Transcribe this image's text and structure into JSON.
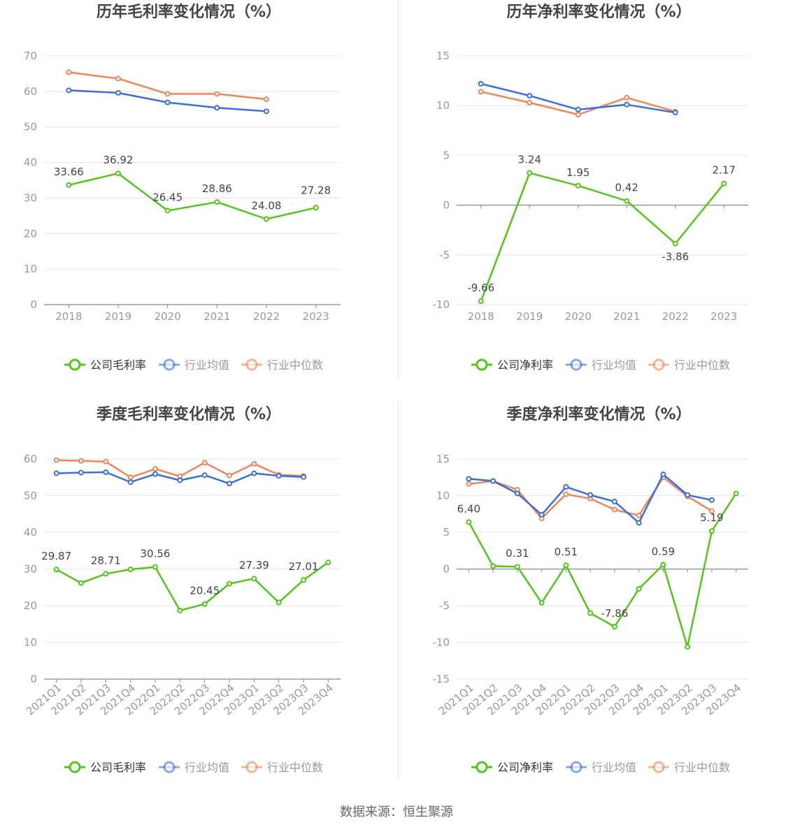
{
  "source_text": "数据来源：恒生聚源",
  "chart_data": [
    {
      "type": "line",
      "title": "历年毛利率变化情况（%）",
      "categories": [
        "2018",
        "2019",
        "2020",
        "2021",
        "2022",
        "2023"
      ],
      "ylim": [
        0,
        70
      ],
      "yticks": [
        0,
        10,
        20,
        30,
        40,
        50,
        60,
        70
      ],
      "series": [
        {
          "name": "公司毛利率",
          "color": "#52c41a",
          "values": [
            33.66,
            36.92,
            26.45,
            28.86,
            24.08,
            27.28
          ],
          "labels": [
            "33.66",
            "36.92",
            "26.45",
            "28.86",
            "24.08",
            "27.28"
          ]
        },
        {
          "name": "行业均值",
          "color": "#3a6fd8",
          "values": [
            60.3,
            59.6,
            56.9,
            55.4,
            54.4,
            null
          ],
          "labels": []
        },
        {
          "name": "行业中位数",
          "color": "#f0855a",
          "values": [
            65.4,
            63.6,
            59.3,
            59.3,
            57.8,
            null
          ],
          "labels": []
        }
      ]
    },
    {
      "type": "line",
      "title": "历年净利率变化情况（%）",
      "categories": [
        "2018",
        "2019",
        "2020",
        "2021",
        "2022",
        "2023"
      ],
      "ylim": [
        -10,
        15
      ],
      "yticks": [
        -10,
        -5,
        0,
        5,
        10,
        15
      ],
      "series": [
        {
          "name": "公司净利率",
          "color": "#52c41a",
          "values": [
            -9.66,
            3.24,
            1.95,
            0.42,
            -3.86,
            2.17
          ],
          "labels": [
            "-9.66",
            "3.24",
            "1.95",
            "0.42",
            "-3.86",
            "2.17"
          ]
        },
        {
          "name": "行业均值",
          "color": "#3a6fd8",
          "values": [
            12.2,
            11.0,
            9.6,
            10.1,
            9.3,
            null
          ],
          "labels": []
        },
        {
          "name": "行业中位数",
          "color": "#f0855a",
          "values": [
            11.4,
            10.3,
            9.1,
            10.8,
            9.4,
            null
          ],
          "labels": []
        }
      ]
    },
    {
      "type": "line",
      "title": "季度毛利率变化情况（%）",
      "categories": [
        "2021Q1",
        "2021Q2",
        "2021Q3",
        "2021Q4",
        "2022Q1",
        "2022Q2",
        "2022Q3",
        "2022Q4",
        "2023Q1",
        "2023Q2",
        "2023Q3",
        "2023Q4"
      ],
      "ylim": [
        0,
        60
      ],
      "yticks": [
        0,
        10,
        20,
        30,
        40,
        50,
        60
      ],
      "series": [
        {
          "name": "公司毛利率",
          "color": "#52c41a",
          "values": [
            29.87,
            26.2,
            28.71,
            29.9,
            30.56,
            18.7,
            20.45,
            26.0,
            27.39,
            20.9,
            27.01,
            31.8
          ],
          "labels": [
            "29.87",
            "",
            "28.71",
            "",
            "30.56",
            "",
            "20.45",
            "",
            "27.39",
            "",
            "27.01",
            ""
          ]
        },
        {
          "name": "行业均值",
          "color": "#3a6fd8",
          "values": [
            56.1,
            56.3,
            56.4,
            53.7,
            55.9,
            54.2,
            55.6,
            53.3,
            56.1,
            55.4,
            55.1,
            null
          ],
          "labels": []
        },
        {
          "name": "行业中位数",
          "color": "#f0855a",
          "values": [
            59.7,
            59.5,
            59.3,
            55.0,
            57.3,
            55.3,
            59.0,
            55.5,
            58.7,
            55.7,
            55.4,
            null
          ],
          "labels": []
        }
      ]
    },
    {
      "type": "line",
      "title": "季度净利率变化情况（%）",
      "categories": [
        "2021Q1",
        "2021Q2",
        "2021Q3",
        "2021Q4",
        "2022Q1",
        "2022Q2",
        "2022Q3",
        "2022Q4",
        "2023Q1",
        "2023Q2",
        "2023Q3",
        "2023Q4"
      ],
      "ylim": [
        -15,
        15
      ],
      "yticks": [
        -15,
        -10,
        -5,
        0,
        5,
        10,
        15
      ],
      "series": [
        {
          "name": "公司净利率",
          "color": "#52c41a",
          "values": [
            6.4,
            0.4,
            0.31,
            -4.6,
            0.51,
            -6.0,
            -7.86,
            -2.7,
            0.59,
            -10.6,
            5.19,
            10.3
          ],
          "labels": [
            "6.40",
            "",
            "0.31",
            "",
            "0.51",
            "",
            "-7.86",
            "",
            "0.59",
            "",
            "5.19",
            ""
          ]
        },
        {
          "name": "行业均值",
          "color": "#3a6fd8",
          "values": [
            12.3,
            12.0,
            10.3,
            7.4,
            11.2,
            10.1,
            9.2,
            6.3,
            12.9,
            10.1,
            9.4,
            null
          ],
          "labels": []
        },
        {
          "name": "行业中位数",
          "color": "#f0855a",
          "values": [
            11.6,
            12.0,
            10.8,
            6.9,
            10.2,
            9.6,
            8.1,
            7.3,
            12.5,
            9.9,
            7.9,
            null
          ],
          "labels": []
        }
      ]
    }
  ]
}
